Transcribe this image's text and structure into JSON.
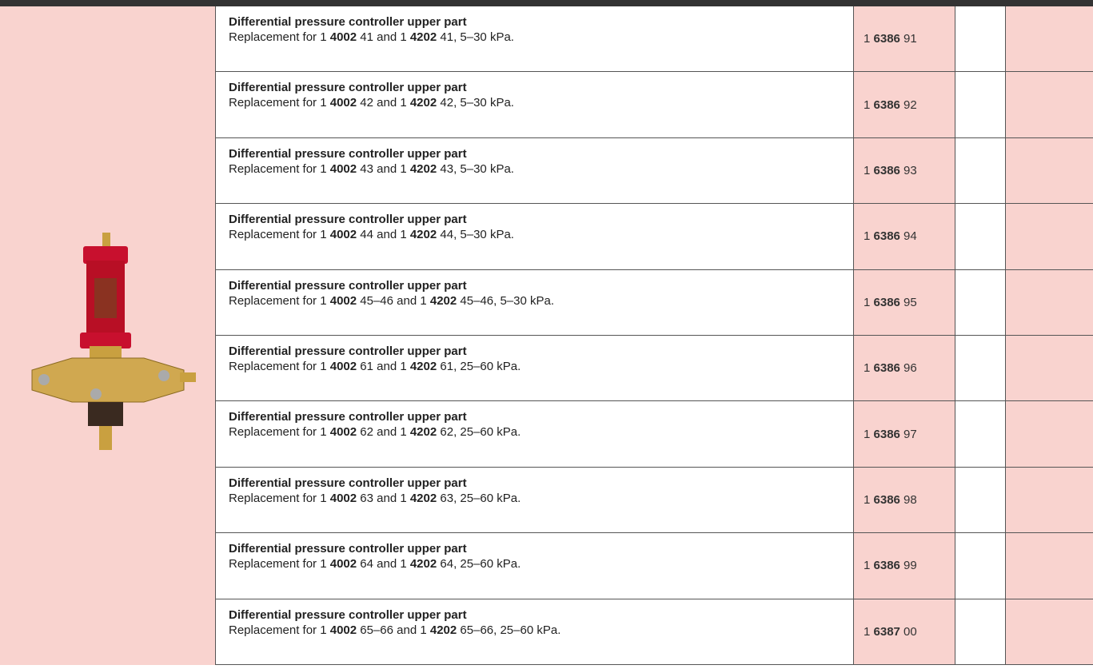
{
  "table": {
    "rows": [
      {
        "title": "Differential pressure controller upper part",
        "description": [
          "Replacement for 1 ",
          "4002",
          " 41 and 1 ",
          "4202",
          " 41, 5–30 kPa."
        ],
        "article": [
          "1 ",
          "6386",
          " 91"
        ]
      },
      {
        "title": "Differential pressure controller upper part",
        "description": [
          "Replacement for 1 ",
          "4002",
          " 42 and 1 ",
          "4202",
          " 42, 5–30 kPa."
        ],
        "article": [
          "1 ",
          "6386",
          " 92"
        ]
      },
      {
        "title": "Differential pressure controller upper part",
        "description": [
          "Replacement for 1 ",
          "4002",
          " 43 and 1 ",
          "4202",
          " 43, 5–30 kPa."
        ],
        "article": [
          "1 ",
          "6386",
          " 93"
        ]
      },
      {
        "title": "Differential pressure controller upper part",
        "description": [
          "Replacement for 1 ",
          "4002",
          " 44 and 1 ",
          "4202",
          " 44, 5–30 kPa."
        ],
        "article": [
          "1 ",
          "6386",
          " 94"
        ]
      },
      {
        "title": "Differential pressure controller upper part",
        "description": [
          "Replacement for 1 ",
          "4002",
          " 45–46 and 1 ",
          "4202",
          " 45–46, 5–30 kPa."
        ],
        "article": [
          "1 ",
          "6386",
          " 95"
        ]
      },
      {
        "title": "Differential pressure controller upper part",
        "description": [
          "Replacement for 1 ",
          "4002",
          " 61 and 1 ",
          "4202",
          " 61, 25–60 kPa."
        ],
        "article": [
          "1 ",
          "6386",
          " 96"
        ]
      },
      {
        "title": "Differential pressure controller upper part",
        "description": [
          "Replacement for 1 ",
          "4002",
          " 62 and 1 ",
          "4202",
          " 62, 25–60 kPa."
        ],
        "article": [
          "1 ",
          "6386",
          " 97"
        ]
      },
      {
        "title": "Differential pressure controller upper part",
        "description": [
          "Replacement for 1 ",
          "4002",
          " 63 and 1 ",
          "4202",
          " 63, 25–60 kPa."
        ],
        "article": [
          "1 ",
          "6386",
          " 98"
        ]
      },
      {
        "title": "Differential pressure controller upper part",
        "description": [
          "Replacement for 1 ",
          "4002",
          " 64 and 1 ",
          "4202",
          " 64, 25–60 kPa."
        ],
        "article": [
          "1 ",
          "6386",
          " 99"
        ]
      },
      {
        "title": "Differential pressure controller upper part",
        "description": [
          "Replacement for 1 ",
          "4002",
          " 65–66 and 1 ",
          "4202",
          " 65–66, 25–60 kPa."
        ],
        "article": [
          "1 ",
          "6387",
          " 00"
        ]
      }
    ]
  }
}
